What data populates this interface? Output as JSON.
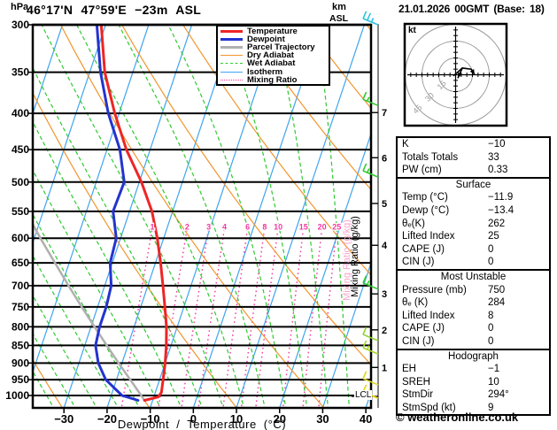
{
  "header": {
    "station_title": "46°17'N 47°59'E −23m ASL",
    "datetime_title": "21.01.2026 00GMT (Base: 18)",
    "pressure_unit": "hPa",
    "altitude_unit": "km",
    "altitude_ref": "ASL"
  },
  "legend": {
    "items": [
      {
        "label": "Temperature",
        "color": "#ee2525",
        "weight": 3,
        "dash": "solid"
      },
      {
        "label": "Dewpoint",
        "color": "#2433cf",
        "weight": 3,
        "dash": "solid"
      },
      {
        "label": "Parcel Trajectory",
        "color": "#b0b0b0",
        "weight": 3,
        "dash": "solid"
      },
      {
        "label": "Dry Adiabat",
        "color": "#f2952d",
        "weight": 1.5,
        "dash": "solid"
      },
      {
        "label": "Wet Adiabat",
        "color": "#2fca2f",
        "weight": 1.5,
        "dash": "dashed"
      },
      {
        "label": "Isotherm",
        "color": "#3fa5ef",
        "weight": 1.5,
        "dash": "solid"
      },
      {
        "label": "Mixing Ratio",
        "color": "#f23a9f",
        "weight": 1.5,
        "dash": "dotted"
      }
    ]
  },
  "chart_data": {
    "type": "line",
    "subtype": "skew-t log-p sounding",
    "title": "46°17'N 47°59'E −23m ASL",
    "x_label": "Dewpoint / Temperature (°C)",
    "temp_ticks_c": [
      -30,
      -20,
      -10,
      0,
      10,
      20,
      30,
      40
    ],
    "pressure_ticks_hpa": [
      300,
      350,
      400,
      450,
      500,
      550,
      600,
      650,
      700,
      750,
      800,
      850,
      900,
      950,
      1000
    ],
    "pressure_range_hpa": [
      300,
      1050
    ],
    "km_ticks": [
      {
        "km": 7,
        "pressure_hpa": 399
      },
      {
        "km": 6,
        "pressure_hpa": 462
      },
      {
        "km": 5,
        "pressure_hpa": 536
      },
      {
        "km": 4,
        "pressure_hpa": 614
      },
      {
        "km": 3,
        "pressure_hpa": 719
      },
      {
        "km": 2,
        "pressure_hpa": 808
      },
      {
        "km": 1,
        "pressure_hpa": 913
      }
    ],
    "lcl": {
      "label": "LCL",
      "pressure_hpa": 1003
    },
    "mixing_axis_label": "Mixing Ratio (g/kg)",
    "mixing_ratio_lines_gkg": [
      1,
      2,
      3,
      4,
      6,
      8,
      10,
      15,
      20,
      25
    ],
    "mixing_label_pressure_hpa": 580,
    "isotherms_c": {
      "from": -120,
      "to": 40,
      "step": 10
    },
    "dry_adiabats_k": {
      "from": 220,
      "to": 480,
      "step": 20
    },
    "wet_adiabats_c": {
      "from": -40,
      "to": 35,
      "step": 5
    },
    "temperature_profile": {
      "pressure_hpa": [
        300,
        350,
        400,
        450,
        500,
        550,
        600,
        650,
        700,
        750,
        800,
        850,
        900,
        950,
        990,
        1005,
        1016
      ],
      "temp_c": [
        -51,
        -46.5,
        -41,
        -35.5,
        -29.5,
        -24.8,
        -21.5,
        -18.8,
        -16.5,
        -14.4,
        -12.5,
        -11.1,
        -10.0,
        -9.2,
        -8.6,
        -9.0,
        -11.9
      ]
    },
    "dewpoint_profile": {
      "pressure_hpa": [
        300,
        350,
        400,
        450,
        500,
        550,
        600,
        650,
        700,
        750,
        800,
        850,
        900,
        950,
        1000,
        1016
      ],
      "dewp_c": [
        -52,
        -47.5,
        -42.5,
        -37,
        -33.5,
        -33.8,
        -31,
        -30.5,
        -28.5,
        -28,
        -28,
        -27.5,
        -25.5,
        -22.5,
        -17.5,
        -13.4
      ]
    },
    "parcel_profile": {
      "pressure_hpa": [
        1016,
        950,
        900,
        850,
        800,
        750,
        700,
        650,
        600,
        560
      ],
      "temp_c": [
        -11.9,
        -16.8,
        -20.8,
        -24.9,
        -29.2,
        -33.7,
        -38.4,
        -43.3,
        -48.6,
        -53.0
      ]
    },
    "colors": {
      "temperature": "#ee2525",
      "dewpoint": "#2433cf",
      "parcel": "#b0b0b0",
      "dry_adiabat": "#f2952d",
      "wet_adiabat": "#2fca2f",
      "isotherm": "#3fa5ef",
      "mixing_ratio": "#f23a9f",
      "grid": "#000000"
    }
  },
  "wind_barbs": [
    {
      "pressure_hpa": 300,
      "color": "#2fc3e3",
      "full": 2,
      "half": 1
    },
    {
      "pressure_hpa": 390,
      "color": "#2fca2f",
      "full": 1,
      "half": 1
    },
    {
      "pressure_hpa": 492,
      "color": "#2fca2f",
      "full": 1,
      "half": 1
    },
    {
      "pressure_hpa": 708,
      "color": "#2fca2f",
      "full": 1,
      "half": 1
    },
    {
      "pressure_hpa": 837,
      "color": "#8ed32f",
      "full": 1,
      "half": 0
    },
    {
      "pressure_hpa": 874,
      "color": "#a8d82a",
      "full": 1,
      "half": 1
    },
    {
      "pressure_hpa": 966,
      "color": "#ddd81e",
      "full": 1,
      "half": 0
    },
    {
      "pressure_hpa": 1009,
      "color": "#e8d40a",
      "full": 1,
      "half": 1
    }
  ],
  "hodograph": {
    "unit": "kt",
    "rings_kt": [
      15,
      30,
      45
    ],
    "tick_step_kt": 5,
    "ring_color": "#999999",
    "trace_color": "#000000",
    "trace_uv_kt": [
      [
        -2,
        -1
      ],
      [
        6,
        6
      ],
      [
        14,
        5
      ],
      [
        17,
        0
      ]
    ],
    "branch_uv_kt": [
      [
        6,
        6
      ],
      [
        2,
        -3
      ]
    ]
  },
  "indices": {
    "groups": [
      {
        "header": null,
        "rows": [
          [
            "K",
            "−10"
          ],
          [
            "Totals Totals",
            "33"
          ],
          [
            "PW (cm)",
            "0.33"
          ]
        ]
      },
      {
        "header": "Surface",
        "rows": [
          [
            "Temp (°C)",
            "−11.9"
          ],
          [
            "Dewp (°C)",
            "−13.4"
          ],
          [
            "θₑ(K)",
            "262"
          ],
          [
            "Lifted Index",
            "25"
          ],
          [
            "CAPE (J)",
            "0"
          ],
          [
            "CIN (J)",
            "0"
          ]
        ]
      },
      {
        "header": "Most Unstable",
        "rows": [
          [
            "Pressure (mb)",
            "750"
          ],
          [
            "θₑ (K)",
            "284"
          ],
          [
            "Lifted Index",
            "8"
          ],
          [
            "CAPE (J)",
            "0"
          ],
          [
            "CIN (J)",
            "0"
          ]
        ]
      },
      {
        "header": "Hodograph",
        "rows": [
          [
            "EH",
            "−1"
          ],
          [
            "SREH",
            "10"
          ],
          [
            "StmDir",
            "294°"
          ],
          [
            "StmSpd (kt)",
            "9"
          ]
        ]
      }
    ]
  },
  "footer": {
    "credit": "© weatheronline.co.uk"
  }
}
